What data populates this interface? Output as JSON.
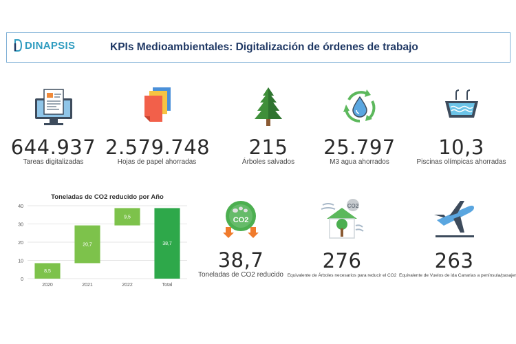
{
  "header": {
    "logo_text": "DINAPSIS",
    "title": "KPIs Medioambientales: Digitalización de órdenes de trabajo"
  },
  "kpis": [
    {
      "value": "644.937",
      "label": "Tareas digitalizadas",
      "icon": "computer-document-icon"
    },
    {
      "value": "2.579.748",
      "label": "Hojas de papel ahorradas",
      "icon": "paper-stack-icon"
    },
    {
      "value": "215",
      "label": "Árboles salvados",
      "icon": "tree-icon"
    },
    {
      "value": "25.797",
      "label": "M3 agua ahorrados",
      "icon": "water-recycle-icon"
    },
    {
      "value": "10,3",
      "label": "Piscinas olímpicas ahorradas",
      "icon": "swimming-pool-icon"
    },
    {
      "value": "38,7",
      "label": "Toneladas de CO2 reducido",
      "icon": "co2-reduction-icon"
    },
    {
      "value": "276",
      "label": "Equivalente de Árboles necesarios para reducir el CO2",
      "icon": "house-tree-co2-icon"
    },
    {
      "value": "263",
      "label": "Equivalente de Vuelos de ida Canarias a península/pasajero",
      "icon": "airplane-icon"
    }
  ],
  "chart_data": {
    "type": "bar",
    "subtype": "waterfall",
    "title": "Toneladas de CO2 reducido por Año",
    "categories": [
      "2020",
      "2021",
      "2022",
      "Total"
    ],
    "values": [
      8.5,
      20.7,
      9.5,
      38.7
    ],
    "value_labels": [
      "8,5",
      "20,7",
      "9,5",
      "38,7"
    ],
    "yticks": [
      0,
      10,
      20,
      30,
      40
    ],
    "ylim": [
      0,
      40
    ],
    "colors": {
      "increase": "#7dc24b",
      "total": "#2ea84a"
    },
    "grid": true,
    "xlabel": "",
    "ylabel": ""
  }
}
